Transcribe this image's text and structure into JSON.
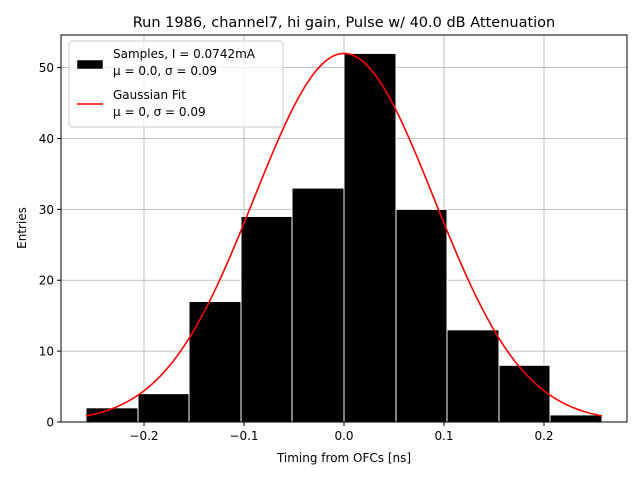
{
  "chart_data": {
    "type": "bar",
    "title": "Run 1986, channel7, hi gain, Pulse w/ 40.0 dB Attenuation",
    "xlabel": "Timing from OFCs [ns]",
    "ylabel": "Entries",
    "xlim": [
      -0.283,
      0.283
    ],
    "ylim": [
      0,
      54.6
    ],
    "grid": true,
    "legend_position": "upper-left",
    "x_ticks": [
      -0.2,
      -0.1,
      0.0,
      0.1,
      0.2
    ],
    "x_tick_labels": [
      "−0.2",
      "−0.1",
      "0.0",
      "0.1",
      "0.2"
    ],
    "y_ticks": [
      0,
      10,
      20,
      30,
      40,
      50
    ],
    "y_tick_labels": [
      "0",
      "10",
      "20",
      "30",
      "40",
      "50"
    ],
    "histogram": {
      "bin_edges": [
        -0.258,
        -0.206,
        -0.155,
        -0.103,
        -0.052,
        0.0,
        0.052,
        0.103,
        0.155,
        0.206,
        0.258
      ],
      "counts": [
        2,
        4,
        17,
        29,
        33,
        52,
        30,
        13,
        8,
        1
      ],
      "color": "#000000",
      "edge_color": "#ffffff"
    },
    "fit": {
      "type": "gaussian",
      "amplitude": 52,
      "mu": 0.0,
      "sigma": 0.09,
      "x_range": [
        -0.258,
        0.258
      ],
      "color": "#ff0000"
    },
    "legend": [
      {
        "line1": "Samples, I = 0.0742mA",
        "line2": "μ = 0.0, σ = 0.09",
        "kind": "patch",
        "color": "#000000"
      },
      {
        "line1": "Gaussian Fit",
        "line2": "μ = 0, σ = 0.09",
        "kind": "line",
        "color": "#ff0000"
      }
    ]
  }
}
